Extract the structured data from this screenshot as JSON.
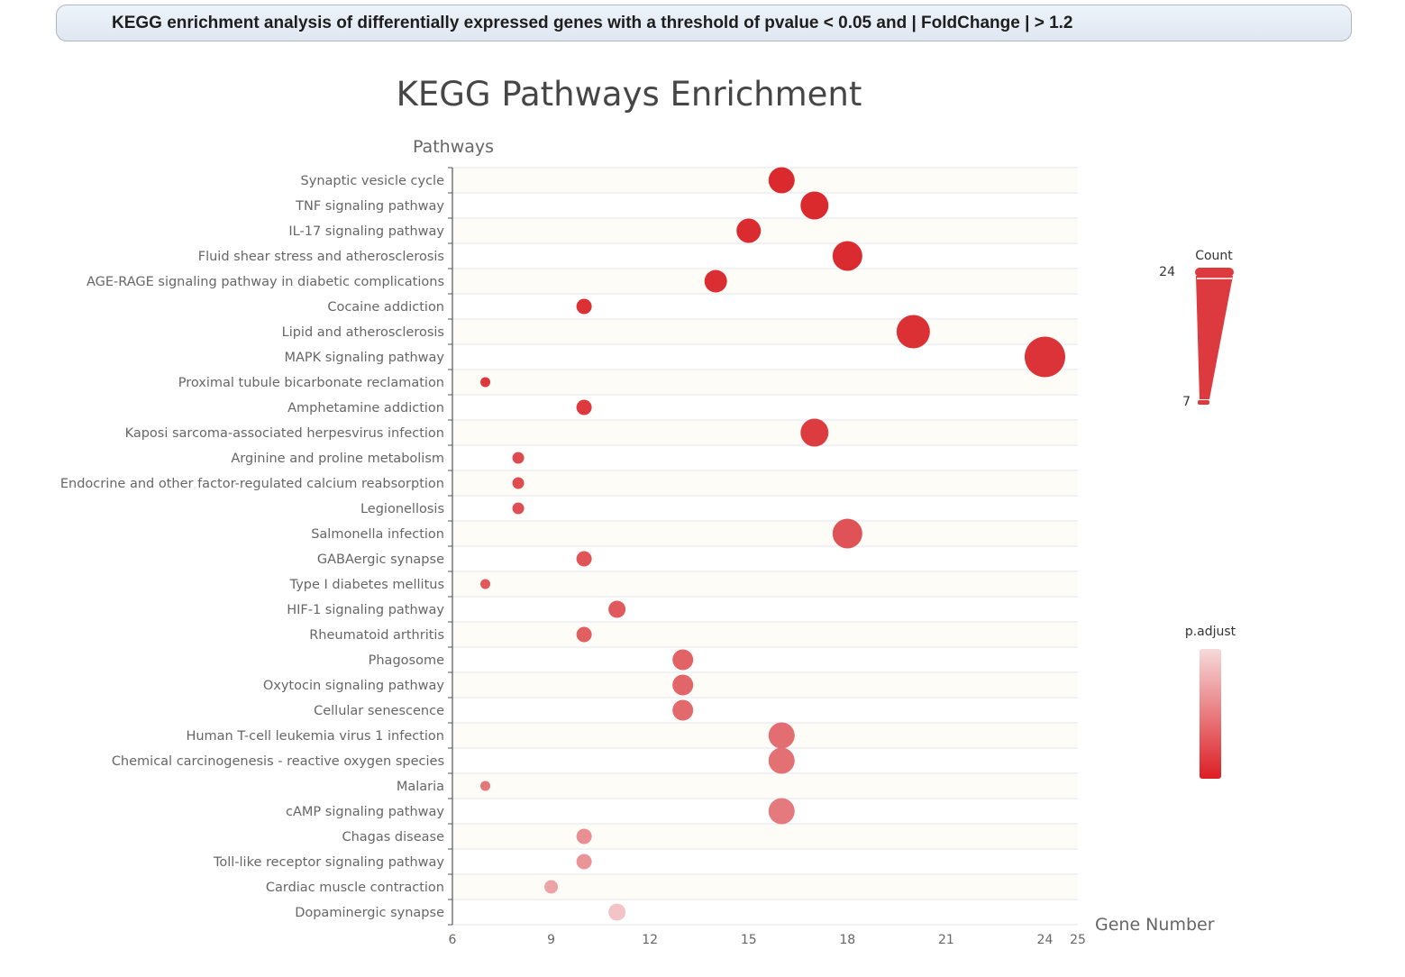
{
  "banner": {
    "text": "KEGG enrichment analysis of differentially expressed genes with a threshold of pvalue < 0.05 and | FoldChange | > 1.2"
  },
  "chart_data": {
    "type": "scatter",
    "title": "KEGG Pathways Enrichment",
    "ylabel": "Pathways",
    "xlabel": "Gene Number",
    "xlim": [
      6,
      25
    ],
    "xticks": [
      6,
      9,
      12,
      15,
      18,
      21,
      24,
      25
    ],
    "grid": "horizontal",
    "legend_placement": "right",
    "size_legend": {
      "title": "Count",
      "max": 24,
      "min": 7
    },
    "color_legend": {
      "title": "p.adjust",
      "low_color": "#dc1e24",
      "high_color": "#f6dada"
    },
    "pathways": [
      "Synaptic vesicle cycle",
      "TNF signaling pathway",
      "IL-17 signaling pathway",
      "Fluid shear stress and atherosclerosis",
      "AGE-RAGE signaling pathway in diabetic complications",
      "Cocaine addiction",
      "Lipid and atherosclerosis",
      "MAPK signaling pathway",
      "Proximal tubule bicarbonate reclamation",
      "Amphetamine addiction",
      "Kaposi sarcoma-associated herpesvirus infection",
      "Arginine and proline metabolism",
      "Endocrine and other factor-regulated calcium reabsorption",
      "Legionellosis",
      "Salmonella infection",
      "GABAergic synapse",
      "Type I diabetes mellitus",
      "HIF-1 signaling pathway",
      "Rheumatoid arthritis",
      "Phagosome",
      "Oxytocin signaling pathway",
      "Cellular senescence",
      "Human T-cell leukemia virus 1 infection",
      "Chemical carcinogenesis - reactive oxygen species",
      "Malaria",
      "cAMP signaling pathway",
      "Chagas disease",
      "Toll-like receptor signaling pathway",
      "Cardiac muscle contraction",
      "Dopaminergic synapse"
    ],
    "counts": [
      16,
      17,
      15,
      18,
      14,
      10,
      20,
      24,
      7,
      10,
      17,
      8,
      8,
      8,
      18,
      10,
      7,
      11,
      10,
      13,
      13,
      13,
      16,
      16,
      7,
      16,
      10,
      10,
      9,
      11
    ],
    "colors": [
      "#da2a2e",
      "#da2a2e",
      "#da2c30",
      "#da2c30",
      "#da2e32",
      "#db3135",
      "#db3135",
      "#db3337",
      "#dc373b",
      "#dc3a3e",
      "#dc3c40",
      "#de4a4e",
      "#de4c50",
      "#de4e52",
      "#df5356",
      "#df5558",
      "#e0585b",
      "#e05a5d",
      "#e15e61",
      "#e26366",
      "#e26669",
      "#e2696c",
      "#e36e71",
      "#e37174",
      "#e47679",
      "#e47a7d",
      "#e88f92",
      "#e99497",
      "#eca3a5",
      "#f2c4c5"
    ]
  }
}
